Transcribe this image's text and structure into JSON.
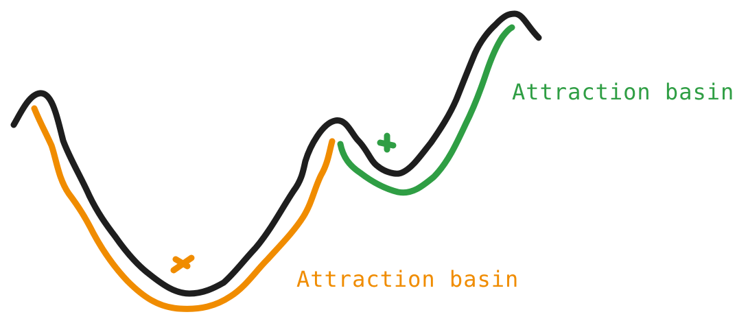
{
  "colors": {
    "landscape": "#1e1e1e",
    "basin_orange": "#f08c00",
    "basin_green": "#2f9e44"
  },
  "basins": [
    {
      "label": "Attraction basin",
      "color": "#f08c00"
    },
    {
      "label": "Attraction basin",
      "color": "#2f9e44"
    }
  ],
  "icons": {
    "marker": "cross-marker-icon"
  }
}
